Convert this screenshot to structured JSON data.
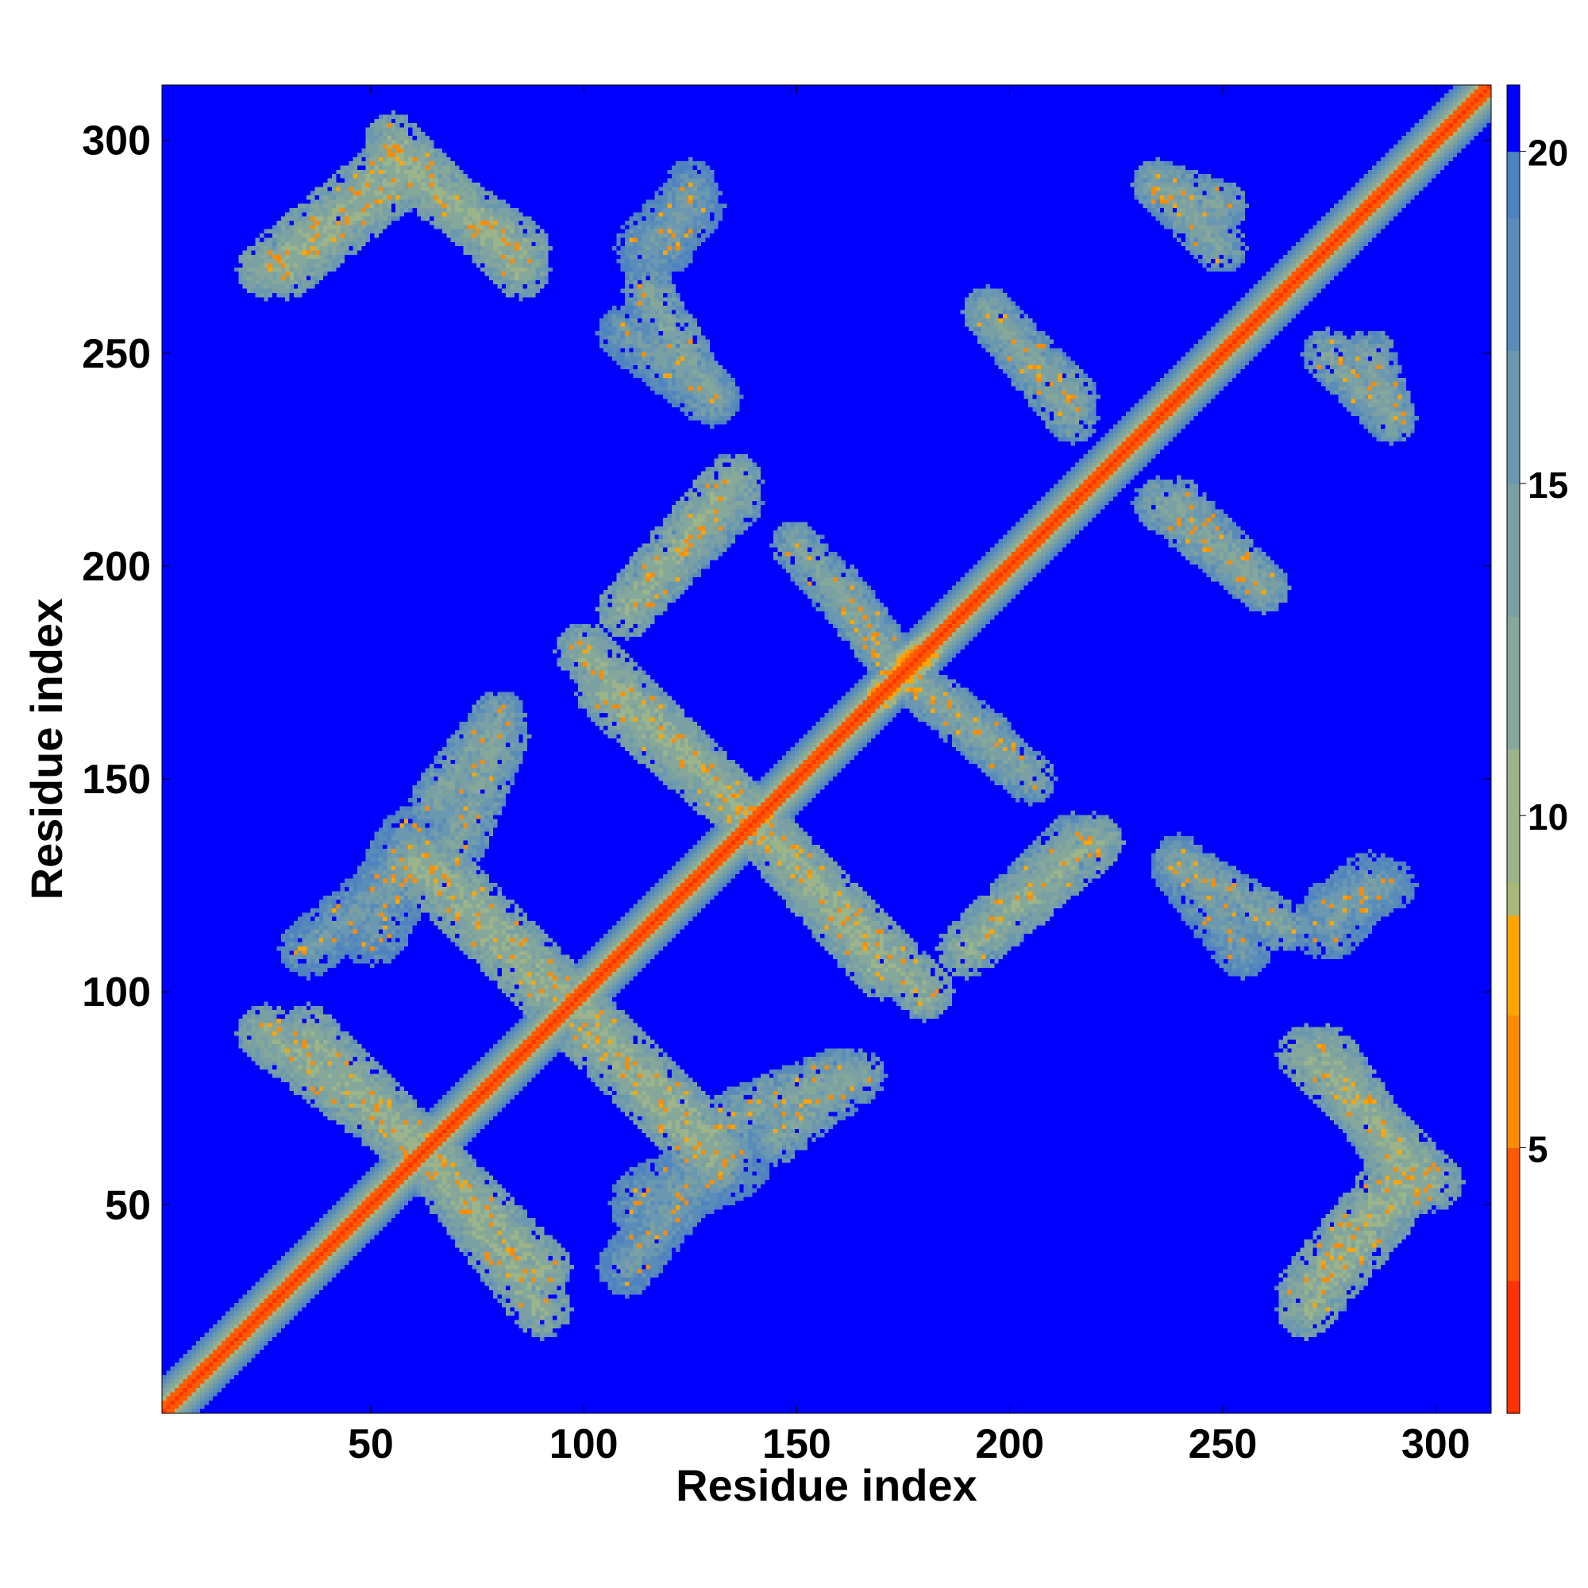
{
  "chart_data": {
    "type": "heatmap",
    "title": "",
    "xlabel": "Residue index",
    "ylabel": "Residue index",
    "xlim": [
      1,
      313
    ],
    "ylim": [
      1,
      313
    ],
    "x_ticks": [
      50,
      100,
      150,
      200,
      250,
      300
    ],
    "y_ticks": [
      50,
      100,
      150,
      200,
      250,
      300
    ],
    "x_tick_labels": [
      "50",
      "100",
      "150",
      "200",
      "250",
      "300"
    ],
    "y_tick_labels": [
      "50",
      "100",
      "150",
      "200",
      "250",
      "300"
    ],
    "grid": false,
    "colorbar": {
      "placement": "right",
      "range": [
        1,
        21
      ],
      "ticks": [
        5,
        10,
        15,
        20
      ],
      "tick_labels": [
        "5",
        "10",
        "15",
        "20"
      ],
      "color_stops": [
        {
          "value": 1,
          "color": "#e41a1c"
        },
        {
          "value": 3,
          "color": "#ff3300"
        },
        {
          "value": 5,
          "color": "#ff5a00"
        },
        {
          "value": 7,
          "color": "#ff8c00"
        },
        {
          "value": 8.5,
          "color": "#ffa500"
        },
        {
          "value": 9,
          "color": "#a8b878"
        },
        {
          "value": 11,
          "color": "#9cb48a"
        },
        {
          "value": 13,
          "color": "#86a89a"
        },
        {
          "value": 15,
          "color": "#7aa0a4"
        },
        {
          "value": 17,
          "color": "#6a98b0"
        },
        {
          "value": 19,
          "color": "#5a8cba"
        },
        {
          "value": 20,
          "color": "#4f82c0"
        },
        {
          "value": 20.01,
          "color": "#0000ff"
        },
        {
          "value": 21,
          "color": "#0000ff"
        }
      ]
    },
    "background_value": 21,
    "diagonal": {
      "core_value": 2,
      "inner_width": 2,
      "middle_width": 5,
      "outer_width": 8
    },
    "contact_regions": [
      {
        "x1": 25,
        "y1": 90,
        "x2": 65,
        "y2": 60,
        "half_width": 7,
        "value": 11
      },
      {
        "x1": 65,
        "y1": 60,
        "x2": 90,
        "y2": 35,
        "half_width": 7,
        "value": 11
      },
      {
        "x1": 95,
        "y1": 100,
        "x2": 130,
        "y2": 65,
        "half_width": 7,
        "value": 11
      },
      {
        "x1": 135,
        "y1": 70,
        "x2": 160,
        "y2": 80,
        "half_width": 7,
        "value": 13
      },
      {
        "x1": 115,
        "y1": 50,
        "x2": 135,
        "y2": 60,
        "half_width": 9,
        "value": 15
      },
      {
        "x1": 60,
        "y1": 130,
        "x2": 90,
        "y2": 100,
        "half_width": 7,
        "value": 11
      },
      {
        "x1": 35,
        "y1": 110,
        "x2": 60,
        "y2": 130,
        "half_width": 7,
        "value": 15
      },
      {
        "x1": 65,
        "y1": 145,
        "x2": 80,
        "y2": 165,
        "half_width": 6,
        "value": 13
      },
      {
        "x1": 100,
        "y1": 180,
        "x2": 140,
        "y2": 140,
        "half_width": 7,
        "value": 11
      },
      {
        "x1": 140,
        "y1": 140,
        "x2": 170,
        "y2": 105,
        "half_width": 7,
        "value": 11
      },
      {
        "x1": 190,
        "y1": 110,
        "x2": 220,
        "y2": 135,
        "half_width": 7,
        "value": 11
      },
      {
        "x1": 115,
        "y1": 195,
        "x2": 135,
        "y2": 215,
        "half_width": 7,
        "value": 13
      },
      {
        "x1": 150,
        "y1": 205,
        "x2": 175,
        "y2": 175,
        "half_width": 6,
        "value": 13
      },
      {
        "x1": 175,
        "y1": 175,
        "x2": 195,
        "y2": 160,
        "half_width": 6,
        "value": 13
      },
      {
        "x1": 170,
        "y1": 170,
        "x2": 180,
        "y2": 180,
        "half_width": 4,
        "value": 6
      },
      {
        "x1": 25,
        "y1": 270,
        "x2": 55,
        "y2": 295,
        "half_width": 7,
        "value": 11
      },
      {
        "x1": 55,
        "y1": 295,
        "x2": 85,
        "y2": 275,
        "half_width": 7,
        "value": 11
      },
      {
        "x1": 110,
        "y1": 255,
        "x2": 130,
        "y2": 240,
        "half_width": 7,
        "value": 15
      },
      {
        "x1": 115,
        "y1": 275,
        "x2": 125,
        "y2": 285,
        "half_width": 8,
        "value": 15
      },
      {
        "x1": 240,
        "y1": 130,
        "x2": 265,
        "y2": 115,
        "half_width": 6,
        "value": 13
      },
      {
        "x1": 275,
        "y1": 120,
        "x2": 290,
        "y2": 125,
        "half_width": 6,
        "value": 15
      },
      {
        "x1": 270,
        "y1": 85,
        "x2": 300,
        "y2": 55,
        "half_width": 7,
        "value": 11
      },
      {
        "x1": 270,
        "y1": 30,
        "x2": 290,
        "y2": 55,
        "half_width": 7,
        "value": 11
      },
      {
        "x1": 235,
        "y1": 215,
        "x2": 260,
        "y2": 195,
        "half_width": 6,
        "value": 13
      },
      {
        "x1": 195,
        "y1": 260,
        "x2": 215,
        "y2": 240,
        "half_width": 6,
        "value": 13
      },
      {
        "x1": 235,
        "y1": 290,
        "x2": 250,
        "y2": 285,
        "half_width": 6,
        "value": 13
      },
      {
        "x1": 275,
        "y1": 250,
        "x2": 290,
        "y2": 235,
        "half_width": 6,
        "value": 13
      }
    ]
  }
}
